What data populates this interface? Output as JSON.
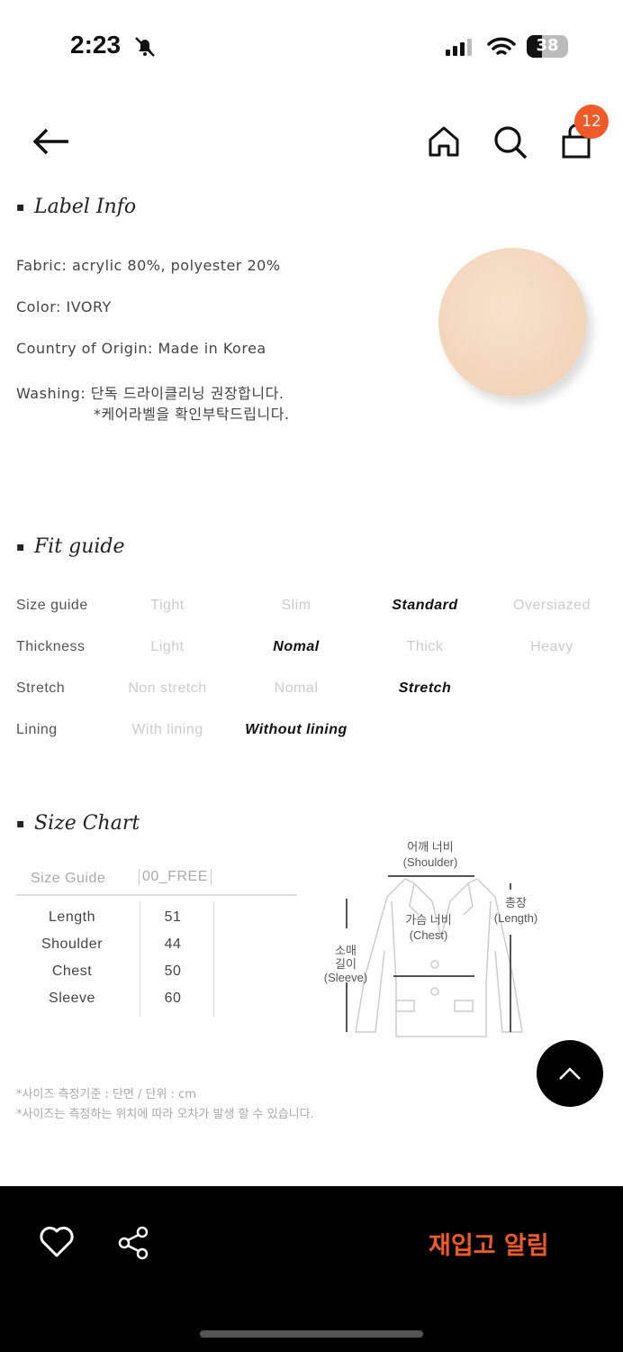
{
  "status": {
    "time": "2:23",
    "battery": "38"
  },
  "nav": {
    "cart_count": "12"
  },
  "label_info": {
    "title": "Label Info",
    "fabric": "Fabric: acrylic 80%, polyester 20%",
    "color": "Color: IVORY",
    "origin": "Country of Origin: Made in Korea",
    "washing": "Washing: 단독 드라이클리닝 권장합니다.",
    "washing_note": "*케어라벨을 확인부탁드립니다.",
    "swatch_color": "#f5dcc4"
  },
  "fit_guide": {
    "title": "Fit guide",
    "rows": [
      {
        "label": "Size guide",
        "options": [
          "Tight",
          "Slim",
          "Standard",
          "Oversiazed"
        ],
        "selected": 2
      },
      {
        "label": "Thickness",
        "options": [
          "Light",
          "Nomal",
          "Thick",
          "Heavy"
        ],
        "selected": 1
      },
      {
        "label": "Stretch",
        "options": [
          "Non stretch",
          "Nomal",
          "Stretch"
        ],
        "selected": 2
      },
      {
        "label": "Lining",
        "options": [
          "With lining",
          "Without lining"
        ],
        "selected": 1
      }
    ]
  },
  "size_chart": {
    "title": "Size Chart",
    "header": [
      "Size Guide",
      "00_FREE"
    ],
    "rows": [
      [
        "Length",
        "51"
      ],
      [
        "Shoulder",
        "44"
      ],
      [
        "Chest",
        "50"
      ],
      [
        "Sleeve",
        "60"
      ]
    ],
    "diagram": {
      "shoulder_ko": "어깨 너비",
      "shoulder_en": "(Shoulder)",
      "length_ko": "총장",
      "length_en": "(Length)",
      "chest_ko": "가슴 너비",
      "chest_en": "(Chest)",
      "sleeve_ko1": "소매",
      "sleeve_ko2": "길이",
      "sleeve_en": "(Sleeve)"
    },
    "notes": [
      "*사이즈 측정기준 : 단면 / 단위 : cm",
      "*사이즈는 측정하는 위치에 따라 오차가 발생 할 수 있습니다."
    ]
  },
  "bottom_bar": {
    "restock_label": "재입고 알림",
    "accent": "#f05a28"
  }
}
